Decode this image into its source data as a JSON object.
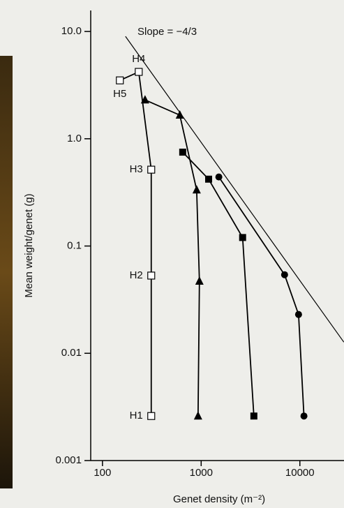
{
  "chart_data": {
    "type": "line",
    "xlabel": "Genet density (m⁻²)",
    "ylabel": "Mean weight/genet (g)",
    "annotation": "Slope = −4/3",
    "xscale": "log",
    "yscale": "log",
    "xlim": [
      76,
      28000
    ],
    "ylim": [
      0.001,
      15.7
    ],
    "xticks": [
      100,
      1000,
      10000
    ],
    "yticks": [
      {
        "value": 10,
        "label": "10.0"
      },
      {
        "value": 1,
        "label": "1.0"
      },
      0.1,
      0.01,
      0.001
    ],
    "series": [
      {
        "marker": "open-square",
        "color": "#000000",
        "x": [
          150,
          233,
          312,
          312,
          312
        ],
        "values": [
          3.5,
          4.2,
          0.515,
          0.053,
          0.0026
        ],
        "point_labels": [
          "H5",
          "H4",
          "H3",
          "H2",
          "H1"
        ]
      },
      {
        "marker": "triangle",
        "color": "#000000",
        "x": [
          270,
          608,
          900,
          960,
          930
        ],
        "values": [
          2.3,
          1.66,
          0.333,
          0.047,
          0.0026
        ]
      },
      {
        "marker": "square",
        "color": "#000000",
        "x": [
          650,
          1190,
          2630,
          3420
        ],
        "values": [
          0.75,
          0.42,
          0.12,
          0.0026
        ]
      },
      {
        "marker": "circle",
        "color": "#000000",
        "x": [
          1510,
          7000,
          9700,
          11000
        ],
        "values": [
          0.44,
          0.054,
          0.023,
          0.0026
        ]
      },
      {
        "marker": "none",
        "color": "#000000",
        "x": [
          171,
          27900
        ],
        "values": [
          9.0,
          0.0127
        ]
      }
    ]
  }
}
